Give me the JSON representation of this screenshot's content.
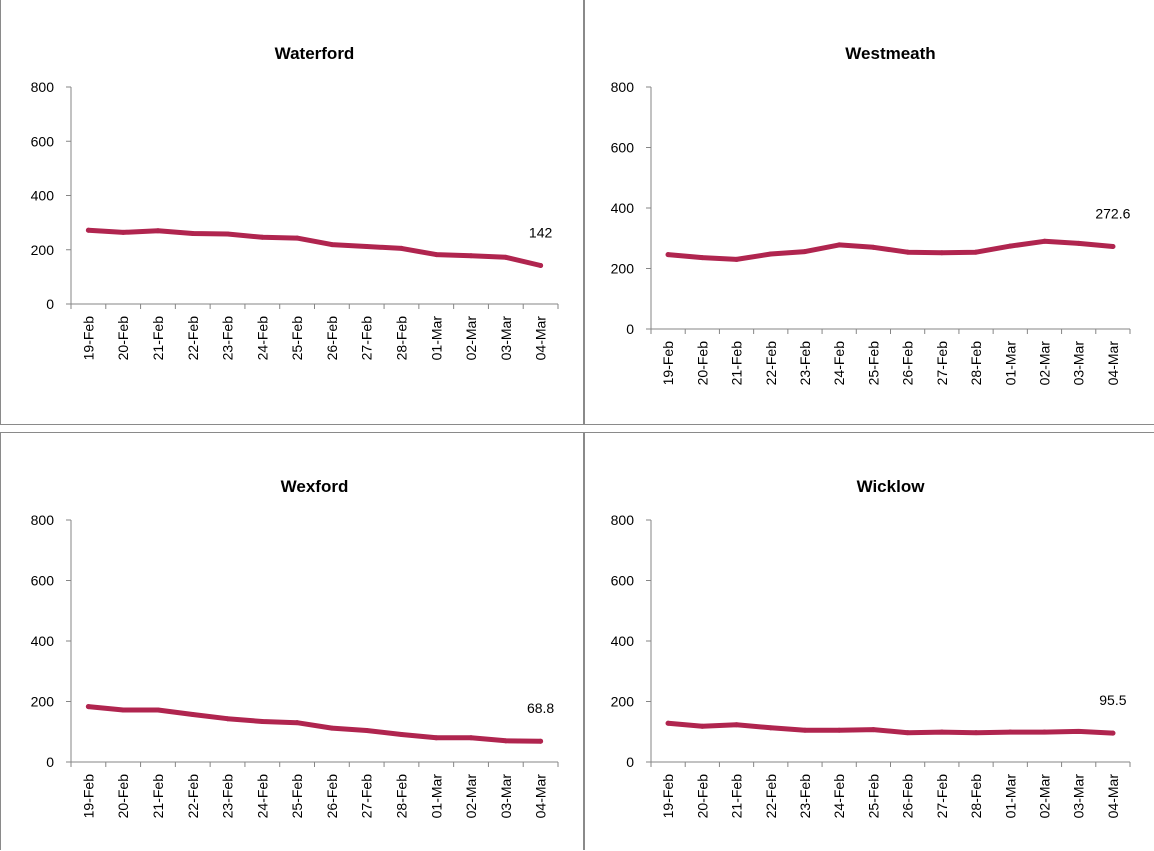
{
  "chart_data": [
    {
      "type": "line",
      "title": "Waterford",
      "categories": [
        "19-Feb",
        "20-Feb",
        "21-Feb",
        "22-Feb",
        "23-Feb",
        "24-Feb",
        "25-Feb",
        "26-Feb",
        "27-Feb",
        "28-Feb",
        "01-Mar",
        "02-Mar",
        "03-Mar",
        "04-Mar"
      ],
      "series": [
        {
          "values": [
            272,
            264,
            270,
            260,
            258,
            246,
            243,
            219,
            212,
            205,
            182,
            178,
            172,
            142
          ]
        }
      ],
      "last_label": "142",
      "ylim": [
        0,
        800
      ],
      "yticks": [
        "0",
        "200",
        "400",
        "600",
        "800"
      ],
      "line_color": "#b0254f",
      "legend": false,
      "grid": false
    },
    {
      "type": "line",
      "title": "Westmeath",
      "categories": [
        "19-Feb",
        "20-Feb",
        "21-Feb",
        "22-Feb",
        "23-Feb",
        "24-Feb",
        "25-Feb",
        "26-Feb",
        "27-Feb",
        "28-Feb",
        "01-Mar",
        "02-Mar",
        "03-Mar",
        "04-Mar"
      ],
      "series": [
        {
          "values": [
            246,
            236,
            230,
            248,
            256,
            278,
            270,
            254,
            252,
            254,
            274,
            290,
            283,
            272.6
          ]
        }
      ],
      "last_label": "272.6",
      "ylim": [
        0,
        800
      ],
      "yticks": [
        "0",
        "200",
        "400",
        "600",
        "800"
      ],
      "line_color": "#b0254f",
      "legend": false,
      "grid": false
    },
    {
      "type": "line",
      "title": "Wexford",
      "categories": [
        "19-Feb",
        "20-Feb",
        "21-Feb",
        "22-Feb",
        "23-Feb",
        "24-Feb",
        "25-Feb",
        "26-Feb",
        "27-Feb",
        "28-Feb",
        "01-Mar",
        "02-Mar",
        "03-Mar",
        "04-Mar"
      ],
      "series": [
        {
          "values": [
            183,
            172,
            172,
            157,
            143,
            134,
            130,
            112,
            104,
            91,
            80,
            80,
            70,
            68.8
          ]
        }
      ],
      "last_label": "68.8",
      "ylim": [
        0,
        800
      ],
      "yticks": [
        "0",
        "200",
        "400",
        "600",
        "800"
      ],
      "line_color": "#b0254f",
      "legend": false,
      "grid": false
    },
    {
      "type": "line",
      "title": "Wicklow",
      "categories": [
        "19-Feb",
        "20-Feb",
        "21-Feb",
        "22-Feb",
        "23-Feb",
        "24-Feb",
        "25-Feb",
        "26-Feb",
        "27-Feb",
        "28-Feb",
        "01-Mar",
        "02-Mar",
        "03-Mar",
        "04-Mar"
      ],
      "series": [
        {
          "values": [
            128,
            118,
            123,
            113,
            105,
            105,
            107,
            97,
            99,
            97,
            99,
            99,
            101,
            95.5
          ]
        }
      ],
      "last_label": "95.5",
      "ylim": [
        0,
        800
      ],
      "yticks": [
        "0",
        "200",
        "400",
        "600",
        "800"
      ],
      "line_color": "#b0254f",
      "legend": false,
      "grid": false
    }
  ]
}
